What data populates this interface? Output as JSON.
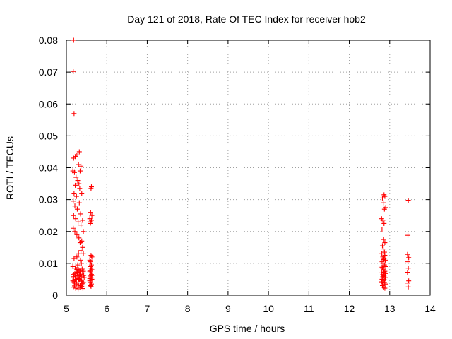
{
  "chart_data": {
    "type": "scatter",
    "title": "Day 121 of 2018, Rate Of TEC Index for receiver hob2",
    "xlabel": "GPS time / hours",
    "ylabel": "ROTI / TECUs",
    "xlim": [
      5,
      14
    ],
    "ylim": [
      0,
      0.08
    ],
    "x_ticks": [
      "5",
      "6",
      "7",
      "8",
      "9",
      "10",
      "11",
      "12",
      "13",
      "14"
    ],
    "y_ticks": [
      "0",
      "0.01",
      "0.02",
      "0.03",
      "0.04",
      "0.05",
      "0.06",
      "0.07",
      "0.08"
    ],
    "grid": true,
    "marker": "plus",
    "series": [
      {
        "color": "#ff0000",
        "points": [
          [
            5.18,
            0.08
          ],
          [
            5.17,
            0.0702
          ],
          [
            5.19,
            0.057
          ],
          [
            5.18,
            0.043
          ],
          [
            5.22,
            0.0435
          ],
          [
            5.26,
            0.044
          ],
          [
            5.32,
            0.045
          ],
          [
            5.3,
            0.041
          ],
          [
            5.36,
            0.0405
          ],
          [
            5.34,
            0.039
          ],
          [
            5.2,
            0.0385
          ],
          [
            5.16,
            0.039
          ],
          [
            5.24,
            0.037
          ],
          [
            5.28,
            0.036
          ],
          [
            5.31,
            0.035
          ],
          [
            5.33,
            0.0335
          ],
          [
            5.22,
            0.0345
          ],
          [
            5.19,
            0.032
          ],
          [
            5.25,
            0.031
          ],
          [
            5.17,
            0.0295
          ],
          [
            5.21,
            0.028
          ],
          [
            5.27,
            0.027
          ],
          [
            5.35,
            0.0255
          ],
          [
            5.38,
            0.032
          ],
          [
            5.32,
            0.029
          ],
          [
            5.18,
            0.025
          ],
          [
            5.23,
            0.024
          ],
          [
            5.29,
            0.023
          ],
          [
            5.36,
            0.022
          ],
          [
            5.4,
            0.0235
          ],
          [
            5.42,
            0.02
          ],
          [
            5.17,
            0.021
          ],
          [
            5.21,
            0.02
          ],
          [
            5.26,
            0.019
          ],
          [
            5.31,
            0.018
          ],
          [
            5.38,
            0.017
          ],
          [
            5.34,
            0.0165
          ],
          [
            5.4,
            0.015
          ],
          [
            5.36,
            0.014
          ],
          [
            5.3,
            0.013
          ],
          [
            5.26,
            0.012
          ],
          [
            5.42,
            0.013
          ],
          [
            5.19,
            0.0115
          ],
          [
            5.35,
            0.011
          ],
          [
            5.37,
            0.01
          ],
          [
            5.28,
            0.0095
          ],
          [
            5.16,
            0.009
          ],
          [
            5.22,
            0.0085
          ],
          [
            5.3,
            0.008
          ],
          [
            5.34,
            0.0075
          ],
          [
            5.4,
            0.007
          ],
          [
            5.18,
            0.0065
          ],
          [
            5.24,
            0.006
          ],
          [
            5.28,
            0.0055
          ],
          [
            5.32,
            0.005
          ],
          [
            5.36,
            0.0045
          ],
          [
            5.42,
            0.004
          ],
          [
            5.2,
            0.0038
          ],
          [
            5.26,
            0.0035
          ],
          [
            5.3,
            0.0032
          ],
          [
            5.34,
            0.003
          ],
          [
            5.38,
            0.0028
          ],
          [
            5.17,
            0.0025
          ],
          [
            5.23,
            0.0022
          ],
          [
            5.29,
            0.002
          ],
          [
            5.35,
            0.0024
          ],
          [
            5.41,
            0.0021
          ],
          [
            5.19,
            0.0042
          ],
          [
            5.25,
            0.0048
          ],
          [
            5.31,
            0.0052
          ],
          [
            5.37,
            0.0058
          ],
          [
            5.43,
            0.0062
          ],
          [
            5.21,
            0.0068
          ],
          [
            5.27,
            0.0072
          ],
          [
            5.33,
            0.0078
          ],
          [
            5.39,
            0.0082
          ],
          [
            5.16,
            0.0045
          ],
          [
            5.22,
            0.005
          ],
          [
            5.28,
            0.0062
          ],
          [
            5.34,
            0.0066
          ],
          [
            5.4,
            0.0036
          ],
          [
            5.44,
            0.0055
          ],
          [
            5.18,
            0.0058
          ],
          [
            5.24,
            0.0071
          ],
          [
            5.3,
            0.0049
          ],
          [
            5.36,
            0.0039
          ],
          [
            5.2,
            0.0029
          ],
          [
            5.32,
            0.0061
          ],
          [
            5.38,
            0.0044
          ],
          [
            5.26,
            0.0081
          ],
          [
            5.42,
            0.0075
          ],
          [
            5.62,
            0.034
          ],
          [
            5.61,
            0.0335
          ],
          [
            5.6,
            0.026
          ],
          [
            5.63,
            0.025
          ],
          [
            5.58,
            0.024
          ],
          [
            5.62,
            0.0235
          ],
          [
            5.6,
            0.023
          ],
          [
            5.59,
            0.0225
          ],
          [
            5.61,
            0.0125
          ],
          [
            5.63,
            0.012
          ],
          [
            5.58,
            0.011
          ],
          [
            5.6,
            0.0105
          ],
          [
            5.62,
            0.0095
          ],
          [
            5.59,
            0.009
          ],
          [
            5.61,
            0.0085
          ],
          [
            5.63,
            0.008
          ],
          [
            5.58,
            0.0075
          ],
          [
            5.6,
            0.007
          ],
          [
            5.62,
            0.0065
          ],
          [
            5.59,
            0.006
          ],
          [
            5.61,
            0.0055
          ],
          [
            5.63,
            0.005
          ],
          [
            5.58,
            0.0045
          ],
          [
            5.6,
            0.004
          ],
          [
            5.62,
            0.0035
          ],
          [
            5.59,
            0.003
          ],
          [
            5.61,
            0.0028
          ],
          [
            5.63,
            0.0062
          ],
          [
            5.58,
            0.0052
          ],
          [
            5.6,
            0.0078
          ],
          [
            12.86,
            0.0315
          ],
          [
            12.82,
            0.0305
          ],
          [
            12.88,
            0.031
          ],
          [
            12.84,
            0.029
          ],
          [
            12.9,
            0.0275
          ],
          [
            12.87,
            0.027
          ],
          [
            12.8,
            0.024
          ],
          [
            12.83,
            0.0235
          ],
          [
            12.86,
            0.0225
          ],
          [
            12.81,
            0.0205
          ],
          [
            12.85,
            0.0175
          ],
          [
            12.88,
            0.0165
          ],
          [
            12.82,
            0.0155
          ],
          [
            12.84,
            0.0145
          ],
          [
            12.87,
            0.0135
          ],
          [
            12.8,
            0.013
          ],
          [
            12.83,
            0.012
          ],
          [
            12.86,
            0.0115
          ],
          [
            12.89,
            0.011
          ],
          [
            12.81,
            0.0105
          ],
          [
            12.84,
            0.01
          ],
          [
            12.87,
            0.0095
          ],
          [
            12.9,
            0.009
          ],
          [
            12.82,
            0.0085
          ],
          [
            12.85,
            0.008
          ],
          [
            12.88,
            0.0075
          ],
          [
            12.8,
            0.007
          ],
          [
            12.83,
            0.0065
          ],
          [
            12.86,
            0.006
          ],
          [
            12.89,
            0.0055
          ],
          [
            12.81,
            0.005
          ],
          [
            12.84,
            0.0045
          ],
          [
            12.87,
            0.004
          ],
          [
            12.9,
            0.0035
          ],
          [
            12.82,
            0.003
          ],
          [
            12.85,
            0.0025
          ],
          [
            12.88,
            0.0022
          ],
          [
            12.8,
            0.0042
          ],
          [
            12.83,
            0.0058
          ],
          [
            12.86,
            0.0072
          ],
          [
            12.89,
            0.0068
          ],
          [
            12.81,
            0.0088
          ],
          [
            12.84,
            0.0062
          ],
          [
            12.87,
            0.0048
          ],
          [
            12.85,
            0.0112
          ],
          [
            12.88,
            0.0125
          ],
          [
            13.46,
            0.0298
          ],
          [
            13.45,
            0.0188
          ],
          [
            13.44,
            0.0128
          ],
          [
            13.47,
            0.0118
          ],
          [
            13.45,
            0.0105
          ],
          [
            13.46,
            0.0085
          ],
          [
            13.44,
            0.0072
          ],
          [
            13.47,
            0.0045
          ],
          [
            13.45,
            0.0038
          ],
          [
            13.46,
            0.0026
          ]
        ]
      }
    ]
  }
}
